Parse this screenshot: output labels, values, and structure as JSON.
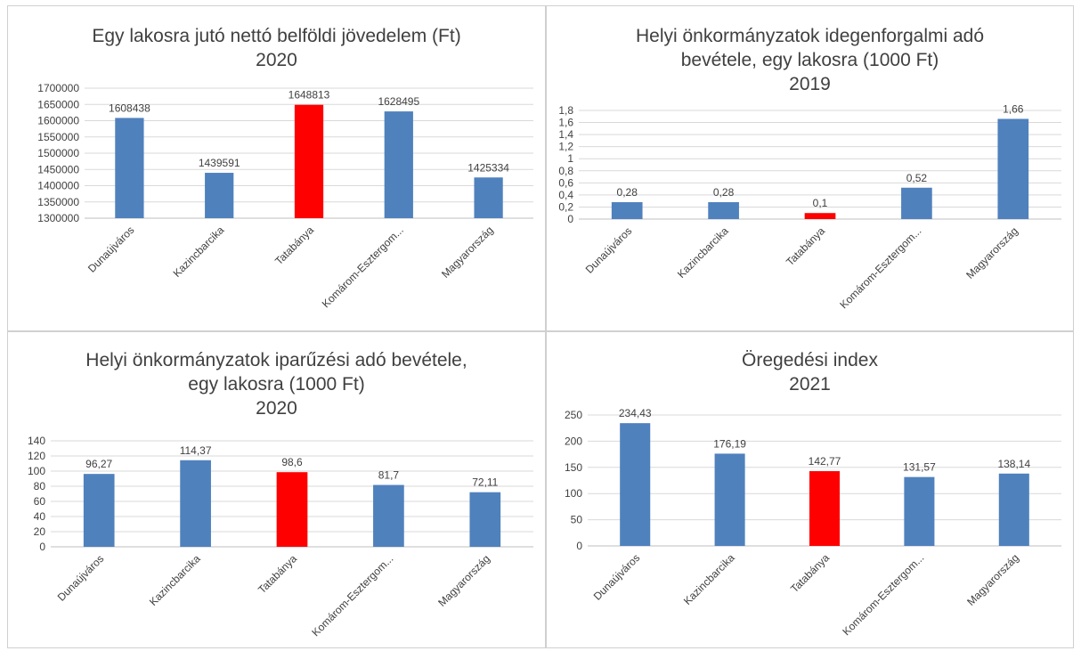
{
  "colors": {
    "bar": "#4f81bd",
    "highlight": "#ff0000",
    "grid": "#d9d9d9",
    "text": "#404040"
  },
  "chart_data": [
    {
      "type": "bar",
      "title": "Egy lakosra jutó nettó belföldi jövedelem (Ft)",
      "subtitle": "2020",
      "categories": [
        "Dunaújváros",
        "Kazincbarcika",
        "Tatabánya",
        "Komárom-Esztergom...",
        "Magyarország"
      ],
      "values": [
        1608438,
        1439591,
        1648813,
        1628495,
        1425334
      ],
      "value_labels": [
        "1608438",
        "1439591",
        "1648813",
        "1628495",
        "1425334"
      ],
      "highlight_index": 2,
      "ylim": [
        1300000,
        1700000
      ],
      "yticks": [
        "1300000",
        "1350000",
        "1400000",
        "1450000",
        "1500000",
        "1550000",
        "1600000",
        "1650000",
        "1700000"
      ],
      "grid": true
    },
    {
      "type": "bar",
      "title": "Helyi önkormányzatok idegenforgalmi adó bevétele, egy lakosra (1000 Ft)",
      "title_lines": [
        "Helyi önkormányzatok idegenforgalmi adó",
        "bevétele, egy lakosra (1000 Ft)"
      ],
      "subtitle": "2019",
      "categories": [
        "Dunaújváros",
        "Kazincbarcika",
        "Tatabánya",
        "Komárom-Esztergom...",
        "Magyarország"
      ],
      "values": [
        0.28,
        0.28,
        0.1,
        0.52,
        1.66
      ],
      "value_labels": [
        "0,28",
        "0,28",
        "0,1",
        "0,52",
        "1,66"
      ],
      "highlight_index": 2,
      "ylim": [
        0,
        1.8
      ],
      "yticks": [
        "0",
        "0,2",
        "0,4",
        "0,6",
        "0,8",
        "1",
        "1,2",
        "1,4",
        "1,6",
        "1,8"
      ],
      "grid": true
    },
    {
      "type": "bar",
      "title": "Helyi önkormányzatok iparűzési adó bevétele, egy lakosra (1000 Ft)",
      "title_lines": [
        "Helyi önkormányzatok iparűzési adó bevétele,",
        "egy lakosra (1000 Ft)"
      ],
      "subtitle": "2020",
      "categories": [
        "Dunaújváros",
        "Kazincbarcika",
        "Tatabánya",
        "Komárom-Esztergom...",
        "Magyarország"
      ],
      "values": [
        96.27,
        114.37,
        98.6,
        81.7,
        72.11
      ],
      "value_labels": [
        "96,27",
        "114,37",
        "98,6",
        "81,7",
        "72,11"
      ],
      "highlight_index": 2,
      "ylim": [
        0,
        140
      ],
      "yticks": [
        "0",
        "20",
        "40",
        "60",
        "80",
        "100",
        "120",
        "140"
      ],
      "grid": true
    },
    {
      "type": "bar",
      "title": "Öregedési index",
      "subtitle": "2021",
      "categories": [
        "Dunaújváros",
        "Kazincbarcika",
        "Tatabánya",
        "Komárom-Esztergom...",
        "Magyarország"
      ],
      "values": [
        234.43,
        176.19,
        142.77,
        131.57,
        138.14
      ],
      "value_labels": [
        "234,43",
        "176,19",
        "142,77",
        "131,57",
        "138,14"
      ],
      "highlight_index": 2,
      "ylim": [
        0,
        250
      ],
      "yticks": [
        "0",
        "50",
        "100",
        "150",
        "200",
        "250"
      ],
      "grid": true
    }
  ]
}
